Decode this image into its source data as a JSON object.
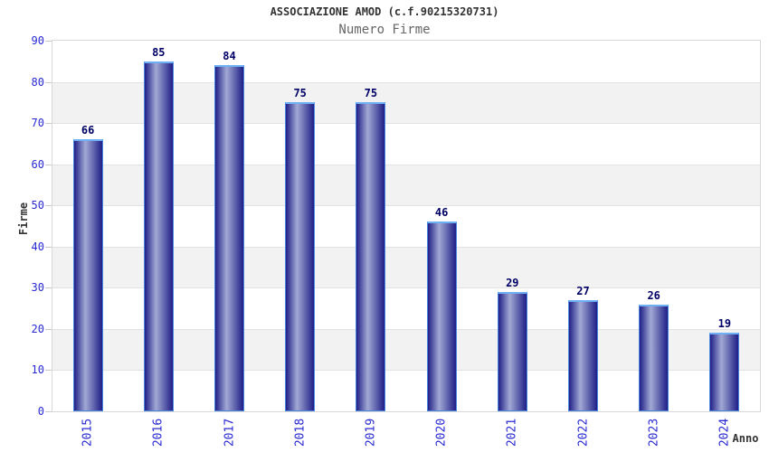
{
  "chart_data": {
    "type": "bar",
    "title": "ASSOCIAZIONE AMOD (c.f.90215320731)",
    "subtitle": "Numero Firme",
    "categories": [
      "2015",
      "2016",
      "2017",
      "2018",
      "2019",
      "2020",
      "2021",
      "2022",
      "2023",
      "2024"
    ],
    "values": [
      66,
      85,
      84,
      75,
      75,
      46,
      29,
      27,
      26,
      19
    ],
    "xlabel": "Anno",
    "ylabel": "Firme",
    "ylim": [
      0,
      90
    ],
    "y_ticks": [
      0,
      10,
      20,
      30,
      40,
      50,
      60,
      70,
      80,
      90
    ],
    "legend": "none",
    "grid": "alternating horizontal bands every 10 units",
    "colors": {
      "axis_text_blue": "#2929d2",
      "value_text_navy": "#000066",
      "title_text": "#333333",
      "subtitle_text": "#666666",
      "axis_title_text": "#333333",
      "band_gray": "#f2f2f2",
      "band_white": "#ffffff",
      "plot_border": "#d8d8d8",
      "grid_line": "#e2e2e2",
      "tick_mark": "#c9c9c9",
      "bar_dark": "#1f1f87",
      "bar_highlight": "#a2a9d4",
      "bar_border": "#4a86de",
      "bar_border_top": "#6fb0f4"
    }
  }
}
